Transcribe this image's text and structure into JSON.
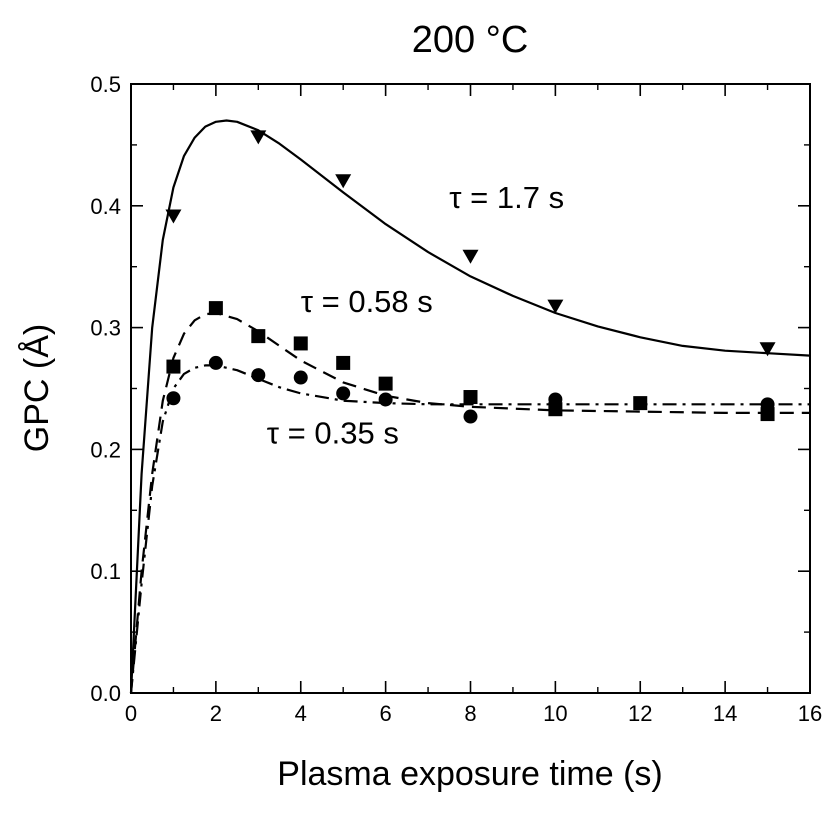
{
  "chart_data": {
    "type": "scatter",
    "title": "200 °C",
    "xlabel": "Plasma exposure time (s)",
    "ylabel": "GPC (Å)",
    "xlim": [
      0,
      16
    ],
    "ylim": [
      0.0,
      0.5
    ],
    "x_ticks": [
      "0",
      "2",
      "4",
      "6",
      "8",
      "10",
      "12",
      "14",
      "16"
    ],
    "y_ticks": [
      "0.0",
      "0.1",
      "0.2",
      "0.3",
      "0.4",
      "0.5"
    ],
    "grid": false,
    "series": [
      {
        "marker": "triangle-down",
        "line_style": "solid",
        "points": [
          [
            1,
            0.392
          ],
          [
            3,
            0.457
          ],
          [
            5,
            0.421
          ],
          [
            8,
            0.359
          ],
          [
            10,
            0.318
          ],
          [
            15,
            0.283
          ]
        ],
        "fit": [
          [
            0,
            0
          ],
          [
            0.25,
            0.18
          ],
          [
            0.5,
            0.3
          ],
          [
            0.75,
            0.372
          ],
          [
            1,
            0.415
          ],
          [
            1.25,
            0.441
          ],
          [
            1.5,
            0.456
          ],
          [
            1.75,
            0.465
          ],
          [
            2,
            0.469
          ],
          [
            2.25,
            0.47
          ],
          [
            2.5,
            0.469
          ],
          [
            3,
            0.462
          ],
          [
            3.5,
            0.451
          ],
          [
            4,
            0.438
          ],
          [
            5,
            0.411
          ],
          [
            6,
            0.385
          ],
          [
            7,
            0.362
          ],
          [
            8,
            0.342
          ],
          [
            9,
            0.326
          ],
          [
            10,
            0.312
          ],
          [
            11,
            0.301
          ],
          [
            12,
            0.292
          ],
          [
            13,
            0.285
          ],
          [
            14,
            0.281
          ],
          [
            15,
            0.279
          ],
          [
            16,
            0.277
          ]
        ]
      },
      {
        "marker": "square",
        "line_style": "dashed",
        "points": [
          [
            1,
            0.268
          ],
          [
            2,
            0.316
          ],
          [
            3,
            0.293
          ],
          [
            4,
            0.287
          ],
          [
            5,
            0.271
          ],
          [
            6,
            0.254
          ],
          [
            8,
            0.243
          ],
          [
            10,
            0.233
          ],
          [
            12,
            0.238
          ],
          [
            15,
            0.229
          ]
        ],
        "fit": [
          [
            0,
            0
          ],
          [
            0.25,
            0.1
          ],
          [
            0.5,
            0.18
          ],
          [
            0.75,
            0.24
          ],
          [
            1,
            0.275
          ],
          [
            1.25,
            0.295
          ],
          [
            1.5,
            0.306
          ],
          [
            1.75,
            0.311
          ],
          [
            2,
            0.312
          ],
          [
            2.5,
            0.307
          ],
          [
            3,
            0.297
          ],
          [
            3.5,
            0.285
          ],
          [
            4,
            0.273
          ],
          [
            5,
            0.255
          ],
          [
            6,
            0.244
          ],
          [
            7,
            0.238
          ],
          [
            8,
            0.235
          ],
          [
            10,
            0.232
          ],
          [
            12,
            0.231
          ],
          [
            14,
            0.23
          ],
          [
            16,
            0.23
          ]
        ]
      },
      {
        "marker": "circle",
        "line_style": "dash-dot",
        "points": [
          [
            1,
            0.242
          ],
          [
            2,
            0.271
          ],
          [
            3,
            0.261
          ],
          [
            4,
            0.259
          ],
          [
            5,
            0.246
          ],
          [
            6,
            0.241
          ],
          [
            8,
            0.227
          ],
          [
            10,
            0.241
          ],
          [
            15,
            0.237
          ]
        ],
        "fit": [
          [
            0,
            0
          ],
          [
            0.25,
            0.09
          ],
          [
            0.5,
            0.17
          ],
          [
            0.75,
            0.223
          ],
          [
            1,
            0.25
          ],
          [
            1.25,
            0.262
          ],
          [
            1.5,
            0.267
          ],
          [
            1.75,
            0.269
          ],
          [
            2,
            0.269
          ],
          [
            2.5,
            0.265
          ],
          [
            3,
            0.258
          ],
          [
            3.5,
            0.251
          ],
          [
            4,
            0.246
          ],
          [
            5,
            0.24
          ],
          [
            6,
            0.238
          ],
          [
            7,
            0.237
          ],
          [
            8,
            0.237
          ],
          [
            10,
            0.237
          ],
          [
            12,
            0.237
          ],
          [
            14,
            0.237
          ],
          [
            16,
            0.237
          ]
        ]
      }
    ],
    "annotations": [
      {
        "text": "τ = 1.7 s",
        "x": 7.5,
        "y": 0.398
      },
      {
        "text": "τ = 0.58 s",
        "x": 4.0,
        "y": 0.313
      },
      {
        "text": "τ = 0.35 s",
        "x": 3.2,
        "y": 0.205
      }
    ]
  }
}
